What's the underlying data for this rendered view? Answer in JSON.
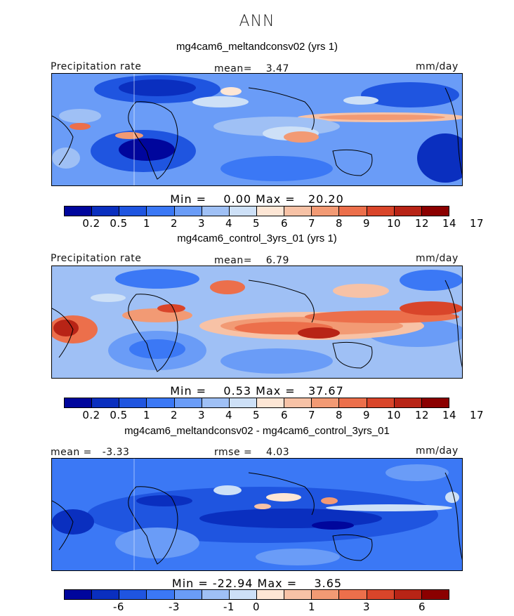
{
  "header": {
    "title": "ANN"
  },
  "colors": {
    "scale": [
      "#00069c",
      "#0a2fbf",
      "#1f55e0",
      "#3b78f5",
      "#6a9cf7",
      "#9fc0f5",
      "#cde0f7",
      "#fde6d5",
      "#f7c2a6",
      "#f29a74",
      "#ec6f4b",
      "#d9452a",
      "#b82416",
      "#8b0000"
    ]
  },
  "panels": [
    {
      "title": "mg4cam6_meltandconsv02 (yrs 1)",
      "left_label": "Precipitation rate",
      "center_label": "mean=    3.47",
      "right_label": "mm/day",
      "minmax": "Min =    0.00 Max =   20.20",
      "colorbar_ticks": [
        "0.2",
        "0.5",
        "1",
        "2",
        "3",
        "4",
        "5",
        "6",
        "7",
        "8",
        "9",
        "10",
        "12",
        "14",
        "17"
      ],
      "field_style": "dry"
    },
    {
      "title": "mg4cam6_control_3yrs_01 (yrs 1)",
      "left_label": "Precipitation rate",
      "center_label": "mean=    6.79",
      "right_label": "mm/day",
      "minmax": "Min =    0.53 Max =   37.67",
      "colorbar_ticks": [
        "0.2",
        "0.5",
        "1",
        "2",
        "3",
        "4",
        "5",
        "6",
        "7",
        "8",
        "9",
        "10",
        "12",
        "14",
        "17"
      ],
      "field_style": "wet"
    },
    {
      "title": "mg4cam6_meltandconsv02 - mg4cam6_control_3yrs_01",
      "left_label": "mean =   -3.33",
      "center_label": "rmse =    4.03",
      "right_label": "mm/day",
      "minmax": "Min = -22.94 Max =    3.65",
      "colorbar_ticks": [
        "-6",
        "-3",
        "-1",
        "0",
        "1",
        "3",
        "6"
      ],
      "field_style": "diff"
    }
  ]
}
